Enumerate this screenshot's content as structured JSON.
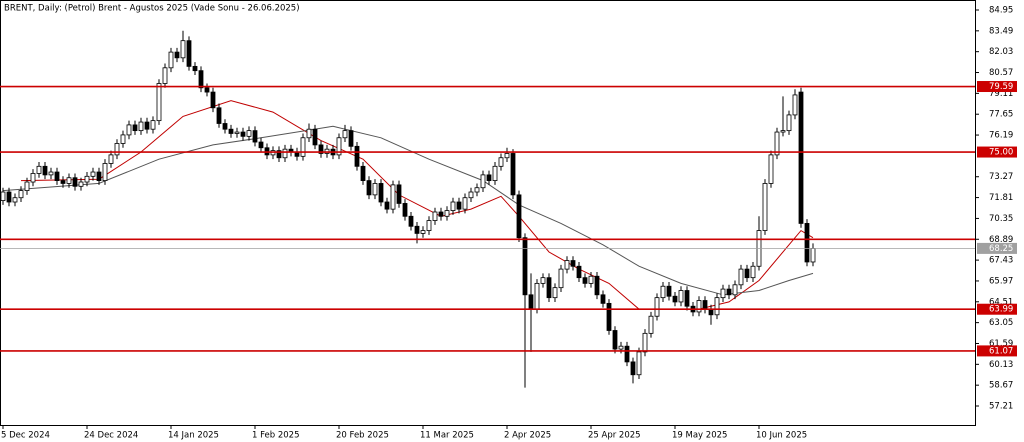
{
  "chart_data": {
    "type": "candlestick",
    "title": "BRENT, Daily:  (Petrol) Brent - Agustos 2025 (Vade Sonu - 26.06.2025)",
    "up_color": "#ffffff",
    "down_color": "#000000",
    "open": [
      71.6,
      72.2,
      71.5,
      71.8,
      72.3,
      72.9,
      73.5,
      74.0,
      73.4,
      73.6,
      73.0,
      72.8,
      73.2,
      72.6,
      72.9,
      73.3,
      73.6,
      73.0,
      74.2,
      74.8,
      75.6,
      76.2,
      76.9,
      76.5,
      77.1,
      76.6,
      77.2,
      79.8,
      80.9,
      82.0,
      81.6,
      82.8,
      81.0,
      80.7,
      79.5,
      79.2,
      78.1,
      77.0,
      76.6,
      76.3,
      76.4,
      76.1,
      76.5,
      75.7,
      75.3,
      74.8,
      75.1,
      74.6,
      75.2,
      75.0,
      74.7,
      76.0,
      76.6,
      75.5,
      74.9,
      75.2,
      74.8,
      76.0,
      76.5,
      75.4,
      74.0,
      73.0,
      72.0,
      72.8,
      71.5,
      71.0,
      72.7,
      71.4,
      70.5,
      69.8,
      69.3,
      69.5,
      70.2,
      70.8,
      70.5,
      70.9,
      71.5,
      71.0,
      71.8,
      72.2,
      72.5,
      73.4,
      73.0,
      74.0,
      74.6,
      74.9,
      72.0,
      69.0,
      65.0,
      64.0,
      65.8,
      66.2,
      64.8,
      65.5,
      66.8,
      67.4,
      67.0,
      66.2,
      65.8,
      66.3,
      65.0,
      64.4,
      62.5,
      61.2,
      61.4,
      60.3,
      59.4,
      61.0,
      62.3,
      63.5,
      64.8,
      65.6,
      64.9,
      64.5,
      65.3,
      64.2,
      63.8,
      64.6,
      64.0,
      63.6,
      64.8,
      65.4,
      65.0,
      65.7,
      66.8,
      66.2,
      67.0,
      69.5,
      72.8,
      74.8,
      76.4,
      76.5,
      77.6,
      79.2,
      70.0,
      67.3
    ],
    "high": [
      72.5,
      72.5,
      72.1,
      72.6,
      73.2,
      73.8,
      74.3,
      74.3,
      73.9,
      73.9,
      73.3,
      73.5,
      73.5,
      73.2,
      73.6,
      73.9,
      73.9,
      74.5,
      75.1,
      75.9,
      76.5,
      77.2,
      77.2,
      77.4,
      77.4,
      77.5,
      80.1,
      81.2,
      82.3,
      82.3,
      83.5,
      83.1,
      81.3,
      81.0,
      79.8,
      79.5,
      78.4,
      77.3,
      76.9,
      76.7,
      76.7,
      76.8,
      76.8,
      76.0,
      75.6,
      75.4,
      75.4,
      75.5,
      75.5,
      75.3,
      76.3,
      77.0,
      76.9,
      75.8,
      75.5,
      75.5,
      76.3,
      76.9,
      76.8,
      75.7,
      74.3,
      73.3,
      73.1,
      73.1,
      71.8,
      73.0,
      73.0,
      71.7,
      70.8,
      70.1,
      69.8,
      70.5,
      71.1,
      71.1,
      71.2,
      71.8,
      71.8,
      72.1,
      72.5,
      72.8,
      73.7,
      73.7,
      74.3,
      74.9,
      75.3,
      75.2,
      72.3,
      69.3,
      66.5,
      66.1,
      66.5,
      66.5,
      65.8,
      67.1,
      67.7,
      67.7,
      67.3,
      66.5,
      66.6,
      66.6,
      65.3,
      64.7,
      62.8,
      61.7,
      61.7,
      60.6,
      61.3,
      62.6,
      63.8,
      65.1,
      65.9,
      65.9,
      65.2,
      65.6,
      65.6,
      64.5,
      64.9,
      64.9,
      64.3,
      65.1,
      65.7,
      65.7,
      66.0,
      67.1,
      67.1,
      67.3,
      70.5,
      73.1,
      75.1,
      76.7,
      78.9,
      77.9,
      79.4,
      79.5,
      70.3,
      68.6
    ],
    "low": [
      71.3,
      71.2,
      71.2,
      71.5,
      72.0,
      72.6,
      73.2,
      73.1,
      73.1,
      72.7,
      72.5,
      72.5,
      72.3,
      72.3,
      72.6,
      73.0,
      72.7,
      72.7,
      73.9,
      74.5,
      75.3,
      75.9,
      76.2,
      76.2,
      76.3,
      76.3,
      76.9,
      79.5,
      80.6,
      81.3,
      81.3,
      80.7,
      80.4,
      79.2,
      78.9,
      77.8,
      76.7,
      76.3,
      76.0,
      76.0,
      75.8,
      75.8,
      75.4,
      75.0,
      74.5,
      74.5,
      74.3,
      74.3,
      74.7,
      74.4,
      74.4,
      75.7,
      75.2,
      74.6,
      74.6,
      74.5,
      74.5,
      75.7,
      75.1,
      73.7,
      72.7,
      71.7,
      71.7,
      71.2,
      70.7,
      70.7,
      71.1,
      70.2,
      69.5,
      68.6,
      69.0,
      69.2,
      69.9,
      70.2,
      70.2,
      70.6,
      70.7,
      70.7,
      71.5,
      71.9,
      72.2,
      72.7,
      72.7,
      73.7,
      74.3,
      71.7,
      68.7,
      58.5,
      61.0,
      63.7,
      65.5,
      64.5,
      64.5,
      65.2,
      66.5,
      66.7,
      65.9,
      65.5,
      65.5,
      64.7,
      64.1,
      62.2,
      60.9,
      60.9,
      60.0,
      58.8,
      59.1,
      60.7,
      62.0,
      63.2,
      64.5,
      64.6,
      64.2,
      64.2,
      63.9,
      63.5,
      63.5,
      63.7,
      62.9,
      63.3,
      64.5,
      64.7,
      64.7,
      65.4,
      65.9,
      65.9,
      66.7,
      69.2,
      72.5,
      74.5,
      76.1,
      76.2,
      77.3,
      69.7,
      67.0,
      67.0
    ],
    "close": [
      72.2,
      71.5,
      71.8,
      72.3,
      72.9,
      73.5,
      74.0,
      73.4,
      73.6,
      73.0,
      72.8,
      73.2,
      72.6,
      72.9,
      73.3,
      73.6,
      73.0,
      74.2,
      74.8,
      75.6,
      76.2,
      76.9,
      76.5,
      77.1,
      76.6,
      77.2,
      79.8,
      80.9,
      82.0,
      81.6,
      82.8,
      81.0,
      80.7,
      79.5,
      79.2,
      78.1,
      77.0,
      76.6,
      76.3,
      76.4,
      76.1,
      76.5,
      75.7,
      75.3,
      74.8,
      75.1,
      74.6,
      75.2,
      75.0,
      74.7,
      76.0,
      76.6,
      75.5,
      74.9,
      75.2,
      74.8,
      76.0,
      76.5,
      75.4,
      74.0,
      73.0,
      72.0,
      72.8,
      71.5,
      71.0,
      72.7,
      71.4,
      70.5,
      69.8,
      69.3,
      69.5,
      70.2,
      70.8,
      70.5,
      70.9,
      71.5,
      71.0,
      71.8,
      72.2,
      72.5,
      73.4,
      73.0,
      74.0,
      74.6,
      74.9,
      72.0,
      69.0,
      65.0,
      64.0,
      65.8,
      66.2,
      64.8,
      65.5,
      66.8,
      67.4,
      67.0,
      66.2,
      65.8,
      66.3,
      65.0,
      64.4,
      62.5,
      61.2,
      61.4,
      60.3,
      59.4,
      61.0,
      62.3,
      63.5,
      64.8,
      65.6,
      64.9,
      64.5,
      65.3,
      64.2,
      63.8,
      64.6,
      64.0,
      63.6,
      64.8,
      65.4,
      65.0,
      65.7,
      66.8,
      66.2,
      67.0,
      69.5,
      72.8,
      74.8,
      76.4,
      76.5,
      77.6,
      79.0,
      70.0,
      67.3,
      68.25
    ],
    "series": [
      {
        "color": "#c00000",
        "x": [
          3,
          16,
          23,
          30,
          38,
          45,
          53,
          60,
          66,
          73,
          78,
          83,
          86,
          91,
          96,
          101,
          106,
          110,
          116,
          121,
          126,
          131,
          133,
          135
        ],
        "values": [
          73.0,
          73.1,
          75.0,
          77.5,
          78.6,
          77.8,
          75.8,
          74.5,
          72.0,
          70.5,
          71.0,
          71.9,
          70.5,
          68.0,
          66.8,
          65.8,
          64.0,
          64.0,
          64.0,
          64.5,
          66.0,
          68.5,
          69.5,
          69.0
        ]
      },
      {
        "color": "#555555",
        "x": [
          0,
          16,
          26,
          35,
          43,
          55,
          63,
          71,
          80,
          86,
          93,
          100,
          106,
          113,
          120,
          126,
          131,
          135
        ],
        "values": [
          72.3,
          72.8,
          74.5,
          75.5,
          76.0,
          76.8,
          76.0,
          74.5,
          73.0,
          71.3,
          70.0,
          68.5,
          67.0,
          65.8,
          65.0,
          65.3,
          66.0,
          66.5
        ]
      }
    ],
    "levels": [
      {
        "value": 79.59,
        "label": "79.59"
      },
      {
        "value": 75,
        "label": "75.00"
      },
      68.89,
      {
        "value": 63.99,
        "label": "63.99"
      },
      {
        "value": 61.07,
        "label": "61.07"
      }
    ],
    "level_color": "#cc0000",
    "last_price": 68.25,
    "last_price_color": "#a0a0a0",
    "xlim": [
      -0.5,
      162
    ],
    "xticks": [
      {
        "value": 0,
        "label": "5 Dec 2024"
      },
      {
        "value": 14,
        "label": "24 Dec 2024"
      },
      {
        "value": 28,
        "label": "14 Jan 2025"
      },
      {
        "value": 42,
        "label": "1 Feb 2025"
      },
      {
        "value": 56,
        "label": "20 Feb 2025"
      },
      {
        "value": 70,
        "label": "11 Mar 2025"
      },
      {
        "value": 84,
        "label": "2 Apr 2025"
      },
      {
        "value": 98,
        "label": "25 Apr 2025"
      },
      {
        "value": 112,
        "label": "19 May 2025"
      },
      {
        "value": 126,
        "label": "10 Jun 2025"
      }
    ],
    "ylim": [
      55.88,
      85.65
    ],
    "yticks": [
      84.95,
      83.49,
      82.03,
      80.57,
      79.11,
      77.65,
      76.19,
      73.27,
      71.81,
      70.35,
      68.89,
      67.43,
      65.97,
      64.51,
      63.05,
      61.59,
      60.13,
      58.67,
      57.21
    ]
  }
}
